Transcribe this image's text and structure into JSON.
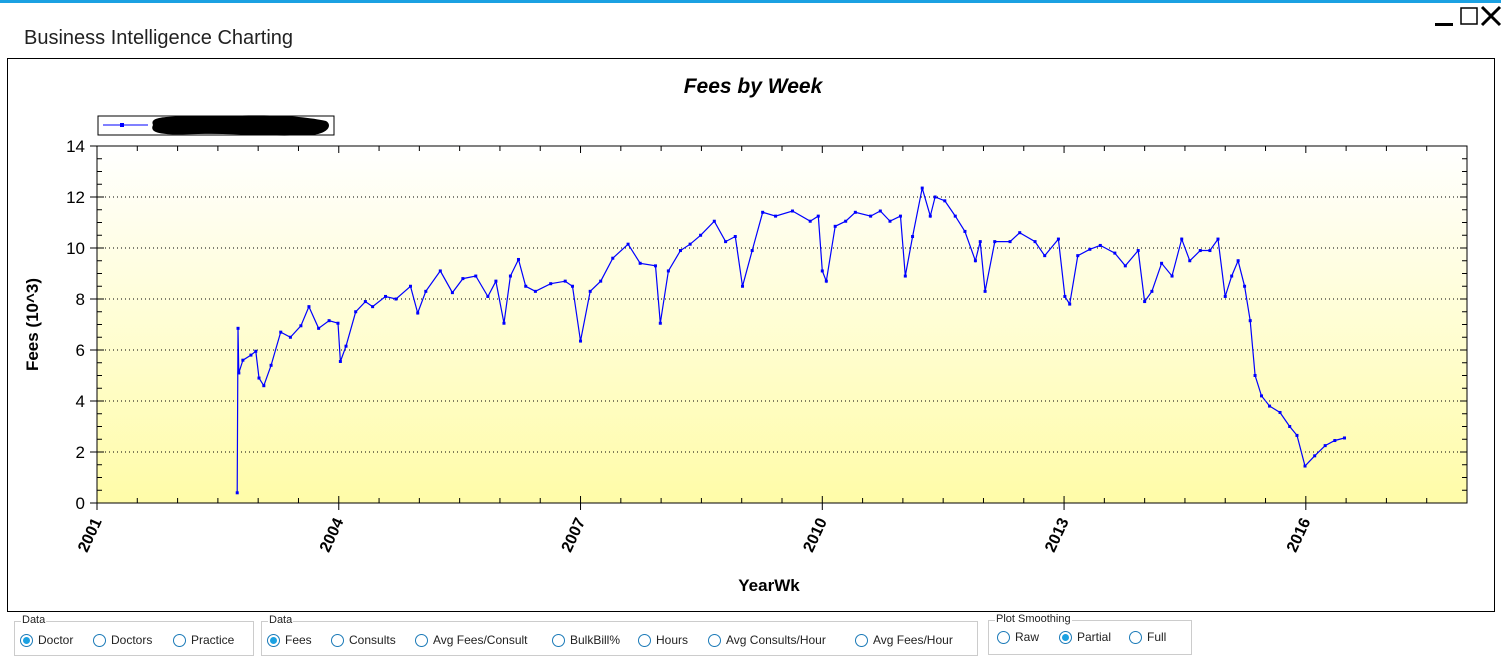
{
  "window": {
    "title": "Business Intelligence Charting",
    "accent_color": "#1ba1e2",
    "buttons": [
      "minimize-icon",
      "maximize-icon",
      "close-icon"
    ]
  },
  "chart_data": {
    "type": "line",
    "title": "Fees by Week",
    "xlabel": "YearWk",
    "ylabel": "Fees (10^3)",
    "xlim": [
      2001,
      2018
    ],
    "ylim": [
      0,
      14
    ],
    "x_ticks": [
      "2001",
      "2004",
      "2007",
      "2010",
      "2013",
      "2016"
    ],
    "y_ticks": [
      "0",
      "2",
      "4",
      "6",
      "8",
      "10",
      "12",
      "14"
    ],
    "grid": "horizontal dotted",
    "legend": "top-left (series name redacted)",
    "series_color": "#0000ff",
    "background_gradient": [
      "#ffffff",
      "#fffca8"
    ],
    "series": [
      {
        "points": [
          [
            2002.74,
            0.4
          ],
          [
            2002.75,
            6.85
          ],
          [
            2002.76,
            5.1
          ],
          [
            2002.81,
            5.6
          ],
          [
            2002.91,
            5.8
          ],
          [
            2002.97,
            5.95
          ],
          [
            2003.01,
            4.9
          ],
          [
            2003.07,
            4.6
          ],
          [
            2003.16,
            5.4
          ],
          [
            2003.28,
            6.7
          ],
          [
            2003.4,
            6.5
          ],
          [
            2003.53,
            6.95
          ],
          [
            2003.63,
            7.7
          ],
          [
            2003.75,
            6.85
          ],
          [
            2003.88,
            7.15
          ],
          [
            2003.99,
            7.05
          ],
          [
            2004.02,
            5.55
          ],
          [
            2004.09,
            6.15
          ],
          [
            2004.21,
            7.5
          ],
          [
            2004.33,
            7.9
          ],
          [
            2004.42,
            7.7
          ],
          [
            2004.58,
            8.1
          ],
          [
            2004.71,
            8.0
          ],
          [
            2004.89,
            8.5
          ],
          [
            2004.98,
            7.45
          ],
          [
            2005.08,
            8.3
          ],
          [
            2005.26,
            9.1
          ],
          [
            2005.41,
            8.25
          ],
          [
            2005.54,
            8.8
          ],
          [
            2005.7,
            8.9
          ],
          [
            2005.85,
            8.1
          ],
          [
            2005.95,
            8.7
          ],
          [
            2006.05,
            7.05
          ],
          [
            2006.13,
            8.9
          ],
          [
            2006.23,
            9.55
          ],
          [
            2006.32,
            8.5
          ],
          [
            2006.44,
            8.3
          ],
          [
            2006.63,
            8.6
          ],
          [
            2006.81,
            8.7
          ],
          [
            2006.9,
            8.5
          ],
          [
            2007.0,
            6.35
          ],
          [
            2007.12,
            8.3
          ],
          [
            2007.25,
            8.7
          ],
          [
            2007.4,
            9.6
          ],
          [
            2007.59,
            10.15
          ],
          [
            2007.74,
            9.4
          ],
          [
            2007.93,
            9.3
          ],
          [
            2007.99,
            7.05
          ],
          [
            2008.09,
            9.1
          ],
          [
            2008.24,
            9.9
          ],
          [
            2008.36,
            10.15
          ],
          [
            2008.49,
            10.5
          ],
          [
            2008.66,
            11.05
          ],
          [
            2008.8,
            10.25
          ],
          [
            2008.92,
            10.45
          ],
          [
            2009.01,
            8.5
          ],
          [
            2009.13,
            9.9
          ],
          [
            2009.26,
            11.4
          ],
          [
            2009.42,
            11.25
          ],
          [
            2009.63,
            11.45
          ],
          [
            2009.85,
            11.05
          ],
          [
            2009.95,
            11.25
          ],
          [
            2010.0,
            9.1
          ],
          [
            2010.05,
            8.7
          ],
          [
            2010.16,
            10.85
          ],
          [
            2010.29,
            11.05
          ],
          [
            2010.41,
            11.4
          ],
          [
            2010.6,
            11.25
          ],
          [
            2010.72,
            11.45
          ],
          [
            2010.84,
            11.05
          ],
          [
            2010.97,
            11.25
          ],
          [
            2011.03,
            8.9
          ],
          [
            2011.12,
            10.45
          ],
          [
            2011.24,
            12.35
          ],
          [
            2011.34,
            11.25
          ],
          [
            2011.4,
            12.0
          ],
          [
            2011.52,
            11.85
          ],
          [
            2011.65,
            11.25
          ],
          [
            2011.77,
            10.65
          ],
          [
            2011.9,
            9.5
          ],
          [
            2011.96,
            10.25
          ],
          [
            2012.02,
            8.3
          ],
          [
            2012.14,
            10.25
          ],
          [
            2012.33,
            10.25
          ],
          [
            2012.45,
            10.6
          ],
          [
            2012.64,
            10.25
          ],
          [
            2012.76,
            9.7
          ],
          [
            2012.93,
            10.35
          ],
          [
            2013.01,
            8.1
          ],
          [
            2013.07,
            7.8
          ],
          [
            2013.17,
            9.7
          ],
          [
            2013.32,
            9.95
          ],
          [
            2013.45,
            10.1
          ],
          [
            2013.63,
            9.8
          ],
          [
            2013.76,
            9.3
          ],
          [
            2013.92,
            9.9
          ],
          [
            2014.0,
            7.9
          ],
          [
            2014.09,
            8.3
          ],
          [
            2014.21,
            9.4
          ],
          [
            2014.34,
            8.9
          ],
          [
            2014.46,
            10.35
          ],
          [
            2014.56,
            9.5
          ],
          [
            2014.69,
            9.9
          ],
          [
            2014.81,
            9.9
          ],
          [
            2014.91,
            10.35
          ],
          [
            2015.0,
            8.1
          ],
          [
            2015.08,
            8.9
          ],
          [
            2015.16,
            9.5
          ],
          [
            2015.24,
            8.5
          ],
          [
            2015.31,
            7.15
          ],
          [
            2015.37,
            5.0
          ],
          [
            2015.45,
            4.2
          ],
          [
            2015.55,
            3.8
          ],
          [
            2015.68,
            3.55
          ],
          [
            2015.8,
            3.0
          ],
          [
            2015.89,
            2.65
          ],
          [
            2015.99,
            1.45
          ],
          [
            2016.11,
            1.85
          ],
          [
            2016.24,
            2.25
          ],
          [
            2016.36,
            2.45
          ],
          [
            2016.48,
            2.55
          ]
        ]
      }
    ]
  },
  "controls": {
    "group1": {
      "label": "Data",
      "options": [
        {
          "label": "Doctor",
          "selected": true
        },
        {
          "label": "Doctors",
          "selected": false
        },
        {
          "label": "Practice",
          "selected": false
        }
      ]
    },
    "group2": {
      "label": "Data",
      "options": [
        {
          "label": "Fees",
          "selected": true
        },
        {
          "label": "Consults",
          "selected": false
        },
        {
          "label": "Avg Fees/Consult",
          "selected": false
        },
        {
          "label": "BulkBill%",
          "selected": false
        },
        {
          "label": "Hours",
          "selected": false
        },
        {
          "label": "Avg Consults/Hour",
          "selected": false
        },
        {
          "label": "Avg Fees/Hour",
          "selected": false
        }
      ]
    },
    "group3": {
      "label": "Plot Smoothing",
      "options": [
        {
          "label": "Raw",
          "selected": false
        },
        {
          "label": "Partial",
          "selected": true
        },
        {
          "label": "Full",
          "selected": false
        }
      ]
    }
  }
}
